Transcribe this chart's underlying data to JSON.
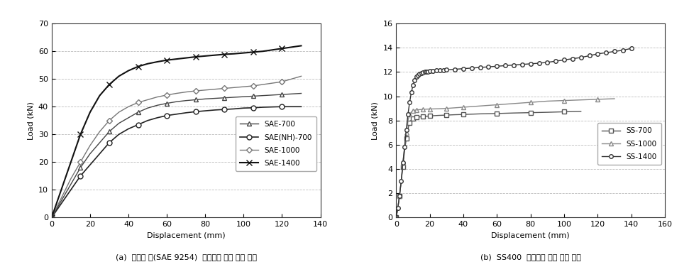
{
  "left_chart": {
    "xlabel": "Displacement (mm)",
    "ylabel": "Load (kN)",
    "xlim": [
      0,
      140
    ],
    "ylim": [
      0,
      70
    ],
    "xticks": [
      0,
      20,
      40,
      60,
      80,
      100,
      120,
      140
    ],
    "yticks": [
      0,
      10,
      20,
      30,
      40,
      50,
      60,
      70
    ],
    "series": {
      "SAE-700": {
        "color": "#444444",
        "marker": "^",
        "markevery": 3,
        "x": [
          0,
          5,
          10,
          15,
          20,
          25,
          30,
          35,
          40,
          45,
          50,
          55,
          60,
          65,
          70,
          75,
          80,
          85,
          90,
          95,
          100,
          105,
          110,
          115,
          120,
          125,
          130
        ],
        "y": [
          0,
          6,
          12,
          18,
          23,
          27,
          31,
          34,
          36,
          38,
          39.5,
          40.5,
          41.2,
          41.8,
          42.2,
          42.5,
          42.8,
          43.0,
          43.2,
          43.4,
          43.6,
          43.8,
          44.0,
          44.2,
          44.4,
          44.6,
          44.8
        ]
      },
      "SAE(NH)-700": {
        "color": "#222222",
        "marker": "o",
        "markevery": 3,
        "x": [
          0,
          5,
          10,
          15,
          20,
          25,
          30,
          35,
          40,
          45,
          50,
          55,
          60,
          65,
          70,
          75,
          80,
          85,
          90,
          95,
          100,
          105,
          110,
          115,
          120,
          125,
          130
        ],
        "y": [
          0,
          5,
          10,
          15,
          19,
          23,
          27,
          30,
          32,
          33.5,
          35,
          36,
          36.8,
          37.3,
          37.8,
          38.2,
          38.5,
          38.8,
          39.0,
          39.2,
          39.5,
          39.6,
          39.8,
          39.9,
          40.0,
          40.0,
          40.0
        ]
      },
      "SAE-1000": {
        "color": "#777777",
        "marker": "D",
        "markevery": 3,
        "x": [
          0,
          5,
          10,
          15,
          20,
          25,
          30,
          35,
          40,
          45,
          50,
          55,
          60,
          65,
          70,
          75,
          80,
          85,
          90,
          95,
          100,
          105,
          110,
          115,
          120,
          125,
          130
        ],
        "y": [
          0,
          7,
          14,
          20,
          26,
          31,
          35,
          38,
          40,
          41.5,
          42.5,
          43.5,
          44.2,
          44.8,
          45.3,
          45.7,
          46.0,
          46.3,
          46.6,
          46.9,
          47.2,
          47.5,
          48.0,
          48.5,
          49.0,
          50.0,
          51.0
        ]
      },
      "SAE-1400": {
        "color": "#111111",
        "marker": "x",
        "markevery": 3,
        "x": [
          0,
          5,
          10,
          15,
          20,
          25,
          30,
          35,
          40,
          45,
          50,
          55,
          60,
          65,
          70,
          75,
          80,
          85,
          90,
          95,
          100,
          105,
          110,
          115,
          120,
          125,
          130
        ],
        "y": [
          0,
          10,
          20,
          30,
          38,
          44,
          48,
          51,
          53,
          54.5,
          55.5,
          56.2,
          56.8,
          57.2,
          57.6,
          58.0,
          58.3,
          58.6,
          58.9,
          59.1,
          59.4,
          59.7,
          60.0,
          60.5,
          61.0,
          61.5,
          62.0
        ]
      }
    },
    "legend": {
      "SAE-700": "SAE-700",
      "SAE(NH)-700": "SAE(NH)-700",
      "SAE-1000": "SAE-1000",
      "SAE-1400": "SAE-1400"
    }
  },
  "right_chart": {
    "xlabel": "Displacement (mm)",
    "ylabel": "Load (kN)",
    "xlim": [
      0,
      160
    ],
    "ylim": [
      0,
      16
    ],
    "xticks": [
      0,
      20,
      40,
      60,
      80,
      100,
      120,
      140,
      160
    ],
    "yticks": [
      0,
      2,
      4,
      6,
      8,
      10,
      12,
      14,
      16
    ],
    "series": {
      "SS-700": {
        "color": "#555555",
        "marker": "s",
        "markevery": 2,
        "x": [
          0,
          1,
          2,
          3,
          4,
          5,
          6,
          7,
          8,
          9,
          10,
          11,
          12,
          14,
          16,
          18,
          20,
          25,
          30,
          35,
          40,
          50,
          60,
          70,
          80,
          90,
          100,
          110
        ],
        "y": [
          0,
          0.8,
          1.8,
          3.0,
          4.2,
          5.5,
          6.5,
          7.3,
          7.8,
          8.05,
          8.15,
          8.2,
          8.25,
          8.3,
          8.32,
          8.35,
          8.38,
          8.42,
          8.45,
          8.48,
          8.5,
          8.55,
          8.58,
          8.62,
          8.65,
          8.68,
          8.72,
          8.75
        ]
      },
      "SS-1000": {
        "color": "#888888",
        "marker": "^",
        "markevery": 2,
        "x": [
          0,
          1,
          2,
          3,
          4,
          5,
          6,
          7,
          8,
          9,
          10,
          11,
          12,
          14,
          16,
          18,
          20,
          25,
          30,
          35,
          40,
          50,
          60,
          70,
          80,
          90,
          100,
          110,
          120,
          130
        ],
        "y": [
          0,
          0.8,
          1.8,
          3.0,
          4.5,
          5.8,
          7.0,
          8.0,
          8.5,
          8.7,
          8.8,
          8.85,
          8.88,
          8.9,
          8.92,
          8.94,
          8.95,
          8.97,
          9.0,
          9.05,
          9.1,
          9.2,
          9.3,
          9.4,
          9.5,
          9.6,
          9.65,
          9.7,
          9.75,
          9.8
        ]
      },
      "SS-1400": {
        "color": "#333333",
        "marker": "o",
        "markevery": 1,
        "x": [
          0,
          1,
          2,
          3,
          4,
          5,
          6,
          7,
          8,
          9,
          10,
          11,
          12,
          13,
          14,
          15,
          16,
          17,
          18,
          19,
          20,
          22,
          24,
          26,
          28,
          30,
          35,
          40,
          45,
          50,
          55,
          60,
          65,
          70,
          75,
          80,
          85,
          90,
          95,
          100,
          105,
          110,
          115,
          120,
          125,
          130,
          135,
          140
        ],
        "y": [
          0,
          0.8,
          1.8,
          3.0,
          4.5,
          5.8,
          7.2,
          8.5,
          9.5,
          10.3,
          10.9,
          11.3,
          11.6,
          11.75,
          11.85,
          11.92,
          11.97,
          12.0,
          12.02,
          12.04,
          12.06,
          12.09,
          12.12,
          12.14,
          12.16,
          12.18,
          12.23,
          12.28,
          12.33,
          12.38,
          12.43,
          12.48,
          12.53,
          12.58,
          12.63,
          12.68,
          12.73,
          12.8,
          12.9,
          13.0,
          13.1,
          13.2,
          13.35,
          13.5,
          13.6,
          13.7,
          13.8,
          13.95
        ]
      }
    },
    "legend": {
      "SS-700": "SS-700",
      "SS-1000": "SS-1000",
      "SS-1400": "SS-1400"
    }
  },
  "caption_left": "(a)  스프링 강(SAE 9254)  스프링의 하중 변위 관계",
  "caption_right": "(b)  SS400  스프링의 하중 변위 관계",
  "grid_color": "#bbbbbb",
  "grid_linestyle": "--",
  "background_color": "#ffffff",
  "text_color": "#000000",
  "line_color": "#333333"
}
